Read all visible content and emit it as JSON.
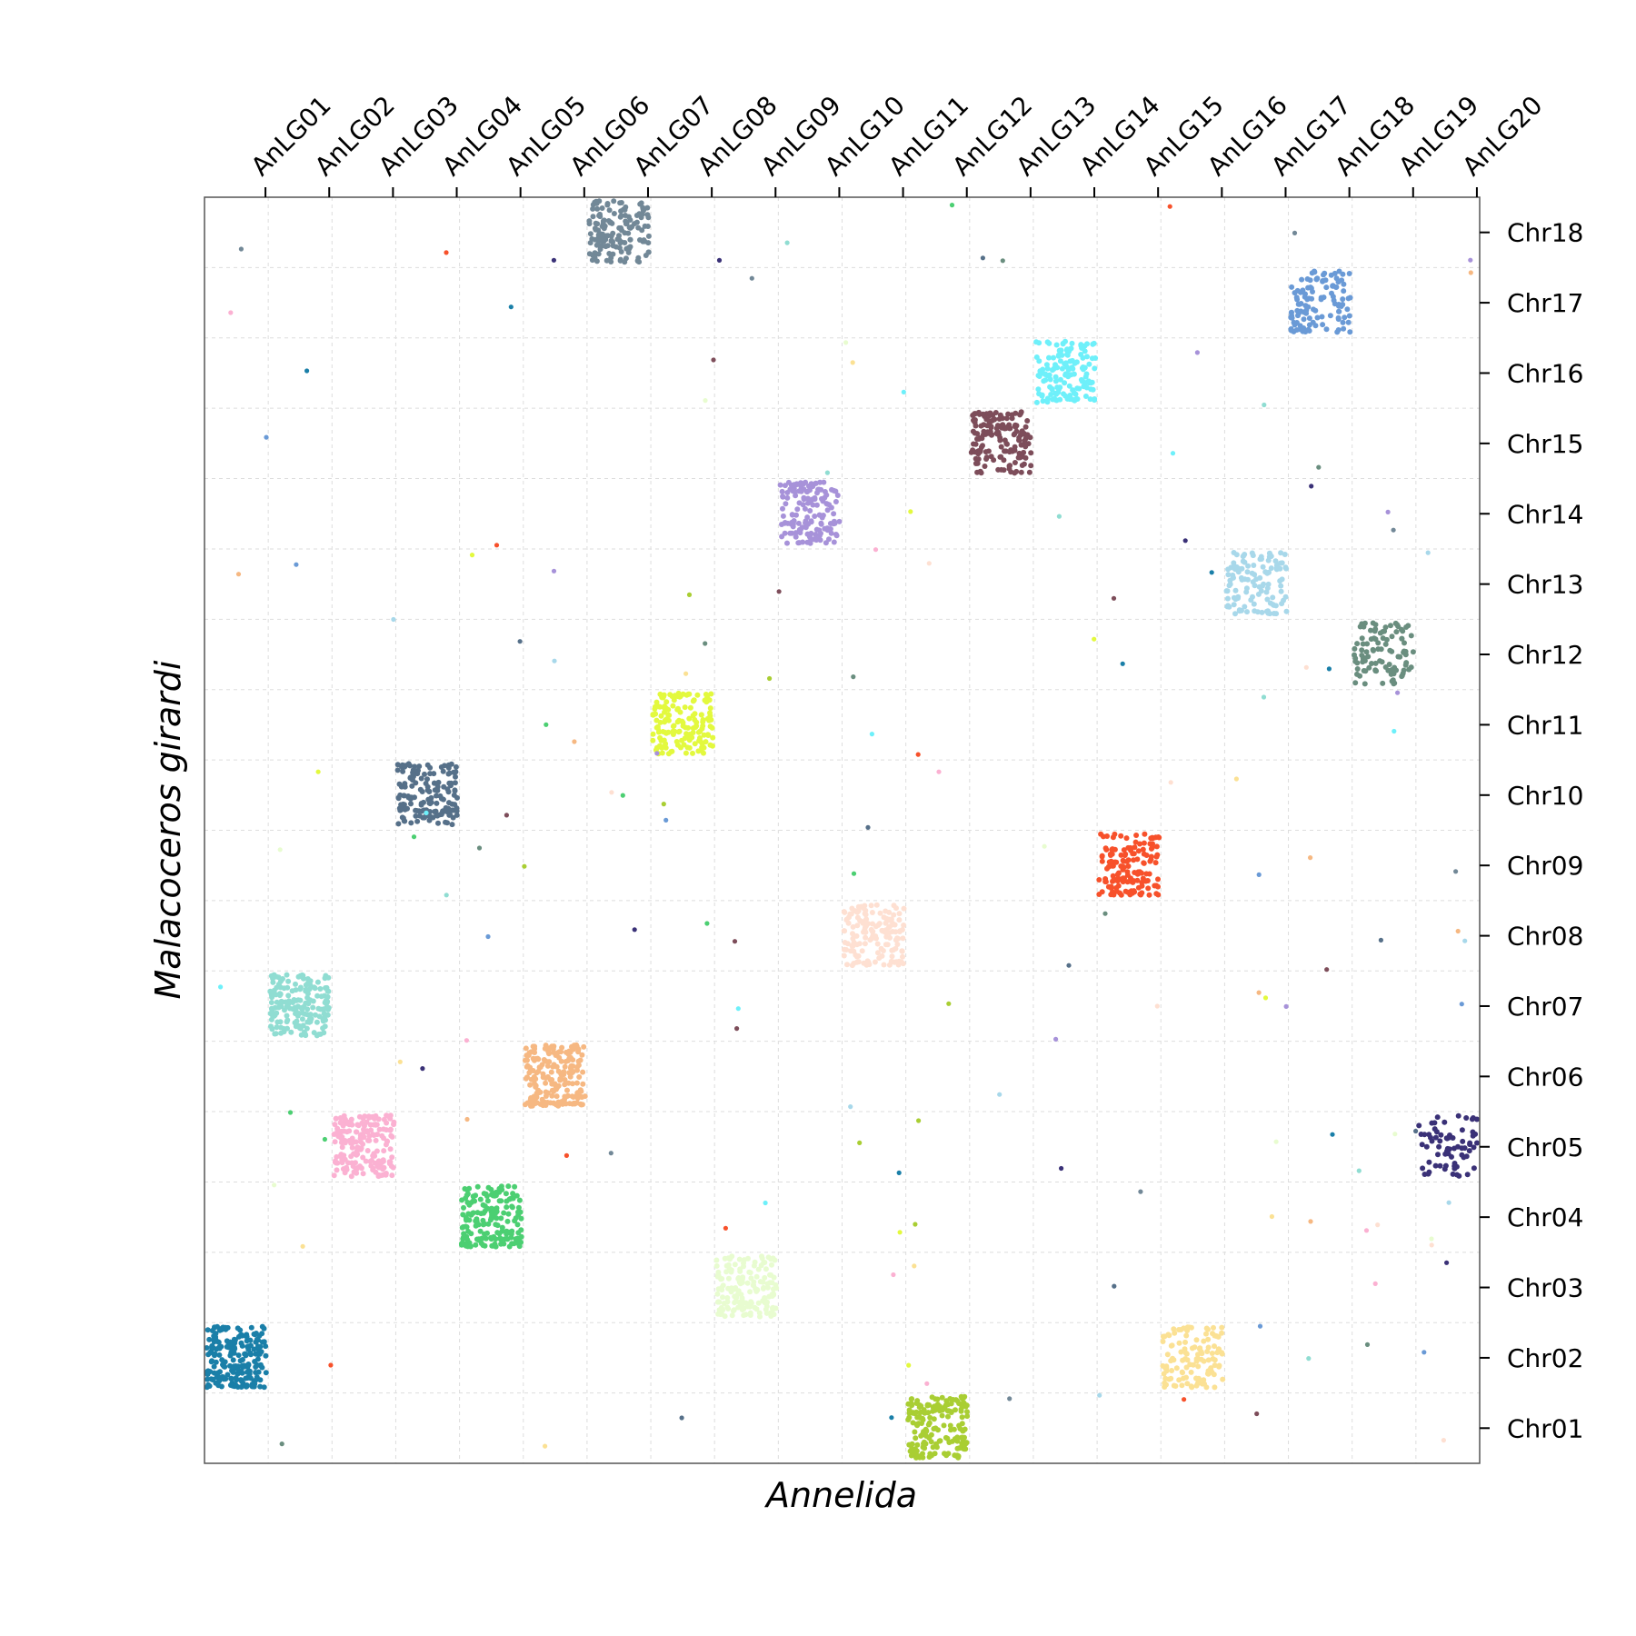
{
  "chart_data": {
    "type": "scatter",
    "title": "",
    "xlabel": "Annelida",
    "ylabel": "Malacoceros girardi",
    "x_categories": [
      "AnLG01",
      "AnLG02",
      "AnLG03",
      "AnLG04",
      "AnLG05",
      "AnLG06",
      "AnLG07",
      "AnLG08",
      "AnLG09",
      "AnLG10",
      "AnLG11",
      "AnLG12",
      "AnLG13",
      "AnLG14",
      "AnLG15",
      "AnLG16",
      "AnLG17",
      "AnLG18",
      "AnLG19",
      "AnLG20"
    ],
    "y_categories": [
      "Chr01",
      "Chr02",
      "Chr03",
      "Chr04",
      "Chr05",
      "Chr06",
      "Chr07",
      "Chr08",
      "Chr09",
      "Chr10",
      "Chr11",
      "Chr12",
      "Chr13",
      "Chr14",
      "Chr15",
      "Chr16",
      "Chr17",
      "Chr18"
    ],
    "x_axis_position": "top",
    "y_axis_position": "right",
    "grid": true,
    "legend": "none",
    "clusters": [
      {
        "x": "AnLG01",
        "y": "Chr02",
        "color": "#1a7fa8",
        "points": 220
      },
      {
        "x": "AnLG02",
        "y": "Chr07",
        "color": "#90ddd2",
        "points": 180
      },
      {
        "x": "AnLG03",
        "y": "Chr05",
        "color": "#fbb1d2",
        "points": 190
      },
      {
        "x": "AnLG04",
        "y": "Chr10",
        "color": "#567089",
        "points": 160
      },
      {
        "x": "AnLG05",
        "y": "Chr04",
        "color": "#4ccf72",
        "points": 180
      },
      {
        "x": "AnLG06",
        "y": "Chr06",
        "color": "#f6b882",
        "points": 190
      },
      {
        "x": "AnLG07",
        "y": "Chr18",
        "color": "#728897",
        "points": 150
      },
      {
        "x": "AnLG08",
        "y": "Chr11",
        "color": "#e3f93e",
        "points": 160
      },
      {
        "x": "AnLG09",
        "y": "Chr03",
        "color": "#e8fcd0",
        "points": 160
      },
      {
        "x": "AnLG10",
        "y": "Chr14",
        "color": "#a792d9",
        "points": 150
      },
      {
        "x": "AnLG11",
        "y": "Chr08",
        "color": "#fee0d2",
        "points": 150
      },
      {
        "x": "AnLG12",
        "y": "Chr01",
        "color": "#a9ce33",
        "points": 180
      },
      {
        "x": "AnLG13",
        "y": "Chr15",
        "color": "#7d4d5a",
        "points": 170
      },
      {
        "x": "AnLG14",
        "y": "Chr16",
        "color": "#6ef0fa",
        "points": 150
      },
      {
        "x": "AnLG15",
        "y": "Chr09",
        "color": "#f7512b",
        "points": 150
      },
      {
        "x": "AnLG16",
        "y": "Chr02",
        "color": "#fbe194",
        "points": 120
      },
      {
        "x": "AnLG17",
        "y": "Chr13",
        "color": "#a8d8ea",
        "points": 120
      },
      {
        "x": "AnLG18",
        "y": "Chr17",
        "color": "#6a9ad6",
        "points": 120
      },
      {
        "x": "AnLG19",
        "y": "Chr12",
        "color": "#6a8e7f",
        "points": 100
      },
      {
        "x": "AnLG20",
        "y": "Chr05",
        "color": "#3a3177",
        "points": 70
      }
    ]
  }
}
